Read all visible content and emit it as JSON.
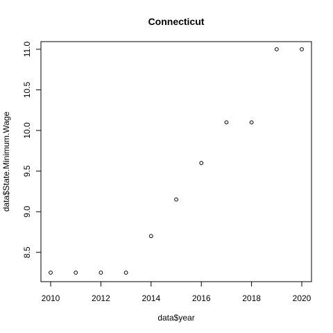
{
  "chart_data": {
    "type": "scatter",
    "title": "Connecticut",
    "xlabel": "data$year",
    "ylabel": "data$State.Minimum.Wage",
    "xlim": [
      2010,
      2020
    ],
    "ylim": [
      8.25,
      11.0
    ],
    "xticks": [
      2010,
      2012,
      2014,
      2016,
      2018,
      2020
    ],
    "yticks": [
      8.5,
      9.0,
      9.5,
      10.0,
      10.5,
      11.0
    ],
    "xtick_labels": [
      "2010",
      "2012",
      "2014",
      "2016",
      "2018",
      "2020"
    ],
    "ytick_labels": [
      "8.5",
      "9.0",
      "9.5",
      "10.0",
      "10.5",
      "11.0"
    ],
    "grid": false,
    "legend": "none",
    "point_color": "#000000",
    "points": [
      {
        "x": 2010,
        "y": 8.25
      },
      {
        "x": 2011,
        "y": 8.25
      },
      {
        "x": 2012,
        "y": 8.25
      },
      {
        "x": 2013,
        "y": 8.25
      },
      {
        "x": 2014,
        "y": 8.7
      },
      {
        "x": 2015,
        "y": 9.15
      },
      {
        "x": 2016,
        "y": 9.6
      },
      {
        "x": 2017,
        "y": 10.1
      },
      {
        "x": 2018,
        "y": 10.1
      },
      {
        "x": 2019,
        "y": 11.0
      },
      {
        "x": 2020,
        "y": 11.0
      }
    ]
  }
}
